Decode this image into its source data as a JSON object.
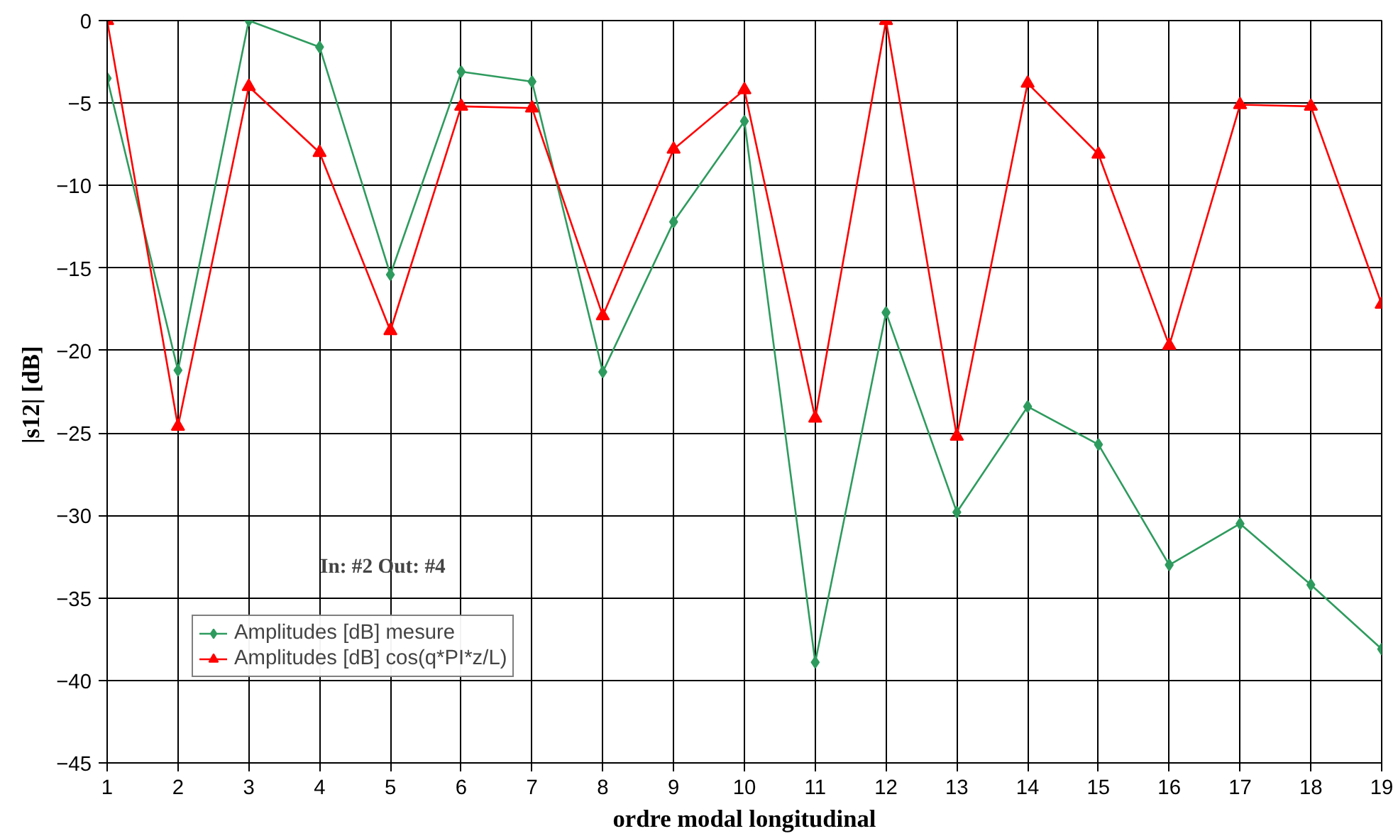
{
  "chart_data": {
    "type": "line",
    "xlabel": "ordre modal longitudinal",
    "ylabel": "|s12|  [dB]",
    "x": [
      1,
      2,
      3,
      4,
      5,
      6,
      7,
      8,
      9,
      10,
      11,
      12,
      13,
      14,
      15,
      16,
      17,
      18,
      19
    ],
    "series": [
      {
        "name": "Amplitudes [dB] mesure",
        "color": "#2e9b5e",
        "marker": "diamond",
        "values": [
          -3.5,
          -21.2,
          0,
          -1.6,
          -15.4,
          -3.1,
          -3.7,
          -21.3,
          -12.2,
          -6.1,
          -38.9,
          -17.7,
          -29.8,
          -23.4,
          -25.7,
          -33.0,
          -30.5,
          -34.2,
          -38.1
        ]
      },
      {
        "name": "Amplitudes [dB] cos(q*PI*z/L)",
        "color": "#ff0000",
        "marker": "triangle",
        "values": [
          0,
          -24.6,
          -4.0,
          -8.0,
          -18.8,
          -5.2,
          -5.3,
          -17.9,
          -7.8,
          -4.2,
          -24.1,
          0,
          -25.2,
          -3.8,
          -8.1,
          -19.7,
          -5.1,
          -5.2,
          -17.2
        ]
      }
    ],
    "xlim": [
      1,
      19
    ],
    "xticks": [
      1,
      2,
      3,
      4,
      5,
      6,
      7,
      8,
      9,
      10,
      11,
      12,
      13,
      14,
      15,
      16,
      17,
      18,
      19
    ],
    "ylim": [
      -45,
      0
    ],
    "yticks": [
      -45,
      -40,
      -35,
      -30,
      -25,
      -20,
      -15,
      -10,
      -5,
      0
    ],
    "grid": true,
    "legend": "bottom left",
    "annotations": [
      "In: #2 Out: #4"
    ]
  }
}
